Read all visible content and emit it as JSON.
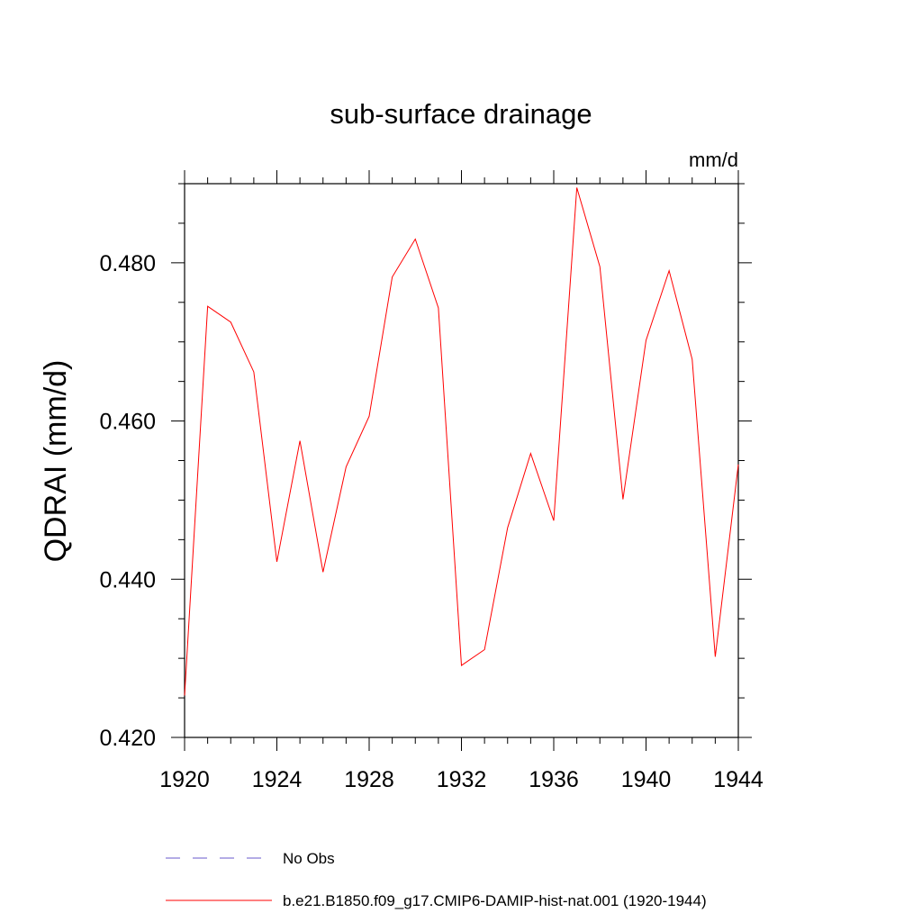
{
  "chart_data": {
    "type": "line",
    "title": "sub-surface drainage",
    "units": "mm/d",
    "ylabel": "QDRAI  (mm/d)",
    "xlabel": "",
    "xlim": [
      1920,
      1944
    ],
    "ylim": [
      0.42,
      0.49
    ],
    "xticks": [
      1920,
      1924,
      1928,
      1932,
      1936,
      1940,
      1944
    ],
    "xtick_labels": [
      "1920",
      "1924",
      "1928",
      "1932",
      "1936",
      "1940",
      "1944"
    ],
    "yticks": [
      0.42,
      0.44,
      0.46,
      0.48
    ],
    "ytick_labels": [
      "0.420",
      "0.440",
      "0.460",
      "0.480"
    ],
    "grid": false,
    "legend_position": "bottom",
    "series": [
      {
        "name": "b.e21.B1850.f09_g17.CMIP6-DAMIP-hist-nat.001 (1920-1944)",
        "color": "#ff0000",
        "style": "solid",
        "x": [
          1920,
          1921,
          1922,
          1923,
          1924,
          1925,
          1926,
          1927,
          1928,
          1929,
          1930,
          1931,
          1932,
          1933,
          1934,
          1935,
          1936,
          1937,
          1938,
          1939,
          1940,
          1941,
          1942,
          1943,
          1944
        ],
        "values": [
          0.4253,
          0.4745,
          0.4725,
          0.4662,
          0.4422,
          0.4575,
          0.4409,
          0.4542,
          0.4606,
          0.4782,
          0.483,
          0.4743,
          0.4291,
          0.4311,
          0.4465,
          0.4559,
          0.4474,
          0.4895,
          0.4795,
          0.4501,
          0.4702,
          0.479,
          0.4678,
          0.4302,
          0.4545
        ]
      }
    ],
    "legend": [
      {
        "label": "No Obs",
        "color": "#6a5acd",
        "style": "dashed"
      },
      {
        "label": "b.e21.B1850.f09_g17.CMIP6-DAMIP-hist-nat.001 (1920-1944)",
        "color": "#ff0000",
        "style": "solid"
      }
    ]
  }
}
